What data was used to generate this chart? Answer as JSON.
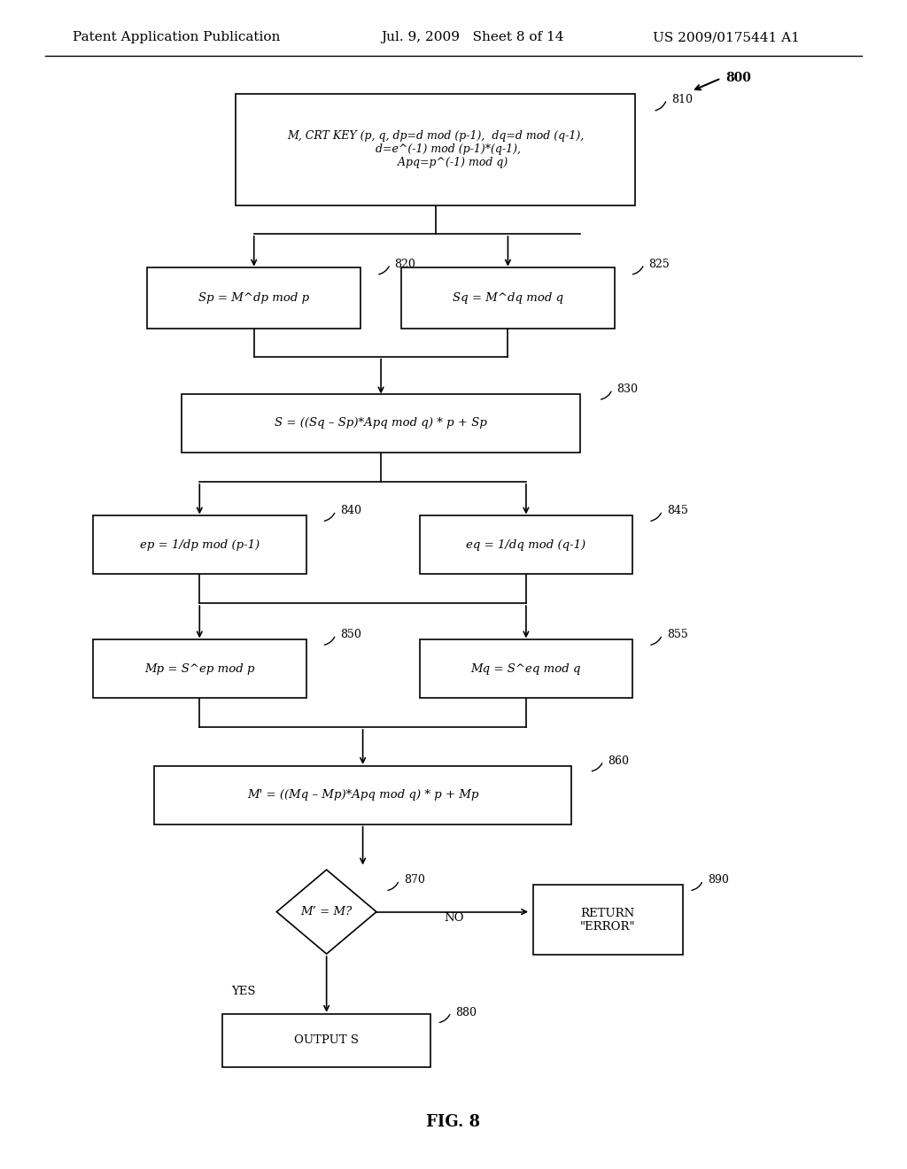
{
  "header_left": "Patent Application Publication",
  "header_mid": "Jul. 9, 2009   Sheet 8 of 14",
  "header_right": "US 2009/0175441 A1",
  "fig_label": "FIG. 8",
  "background": "#ffffff",
  "fontsize_header": 11,
  "fontsize_body": 9.5,
  "fontsize_tag": 9
}
